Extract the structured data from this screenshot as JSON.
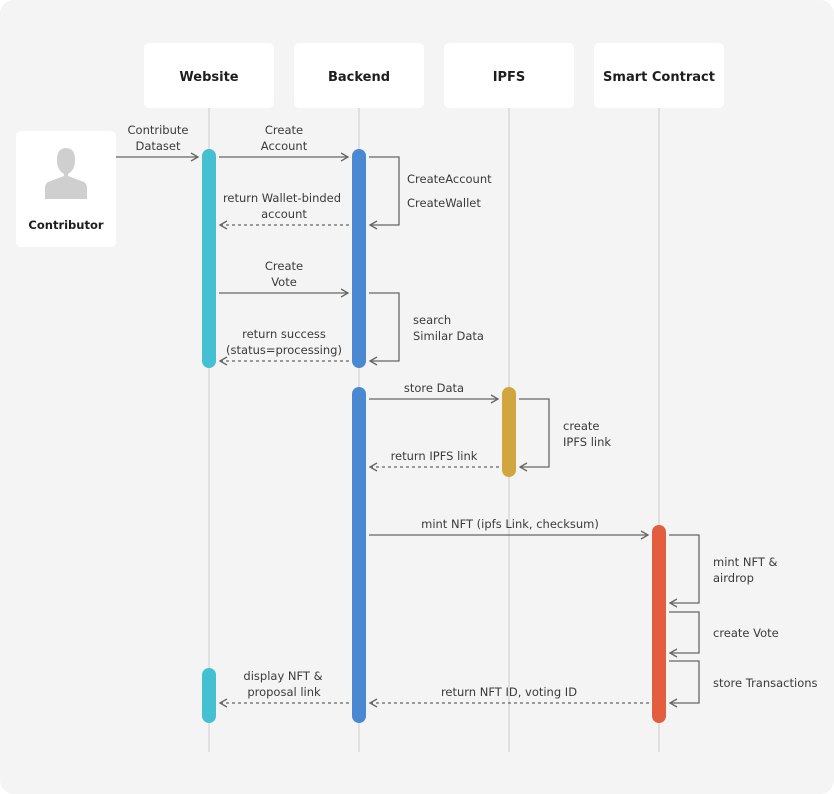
{
  "participants": {
    "website": "Website",
    "backend": "Backend",
    "ipfs": "IPFS",
    "contract": "Smart Contract"
  },
  "actor": {
    "label": "Contributor"
  },
  "colors": {
    "background": "#f4f4f4",
    "card": "#ffffff",
    "lifeline": "#d9d9d9",
    "arrow": "#666666",
    "website": "#45bfd2",
    "backend": "#4a89d1",
    "ipfs": "#d2a63f",
    "contract": "#e35d3f",
    "avatar": "#cfcfcf"
  },
  "messages": {
    "m1": [
      "Contribute",
      "Dataset"
    ],
    "m2": [
      "Create",
      "Account"
    ],
    "m3": [
      "CreateAccount",
      "CreateWallet"
    ],
    "m4": [
      "return Wallet-binded",
      "account"
    ],
    "m5": [
      "Create",
      "Vote"
    ],
    "m6": [
      "search",
      "Similar Data"
    ],
    "m7": [
      "return success",
      "(status=processing)"
    ],
    "m8": [
      "store Data"
    ],
    "m9": [
      "create",
      "IPFS link"
    ],
    "m10": [
      "return IPFS link"
    ],
    "m11": [
      "mint NFT (ipfs Link, checksum)"
    ],
    "m12": [
      "mint NFT &",
      "airdrop"
    ],
    "m13": [
      "create Vote"
    ],
    "m14": [
      "store Transactions"
    ],
    "m15": [
      "return NFT ID, voting ID"
    ],
    "m16": [
      "display NFT &",
      "proposal link"
    ]
  }
}
